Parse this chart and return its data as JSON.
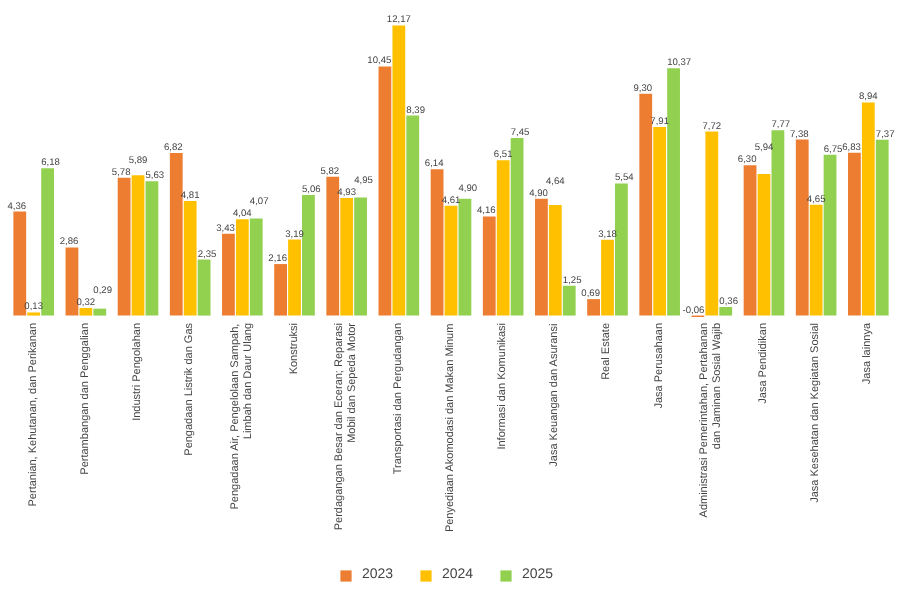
{
  "chart_data": {
    "type": "bar",
    "categories": [
      "Pertanian, Kehutanan, dan Perikanan",
      "Pertambangan dan Penggalian",
      "Industri Pengolahan",
      "Pengadaan Listrik dan Gas",
      "Pengadaan Air, Pengelolaan Sampah, Limbah dan Daur Ulang",
      "Konstruksi",
      "Perdagangan Besar dan Eceran; Reparasi Mobil dan Sepeda Motor",
      "Transportasi dan Pergudangan",
      "Penyediaan Akomodasi dan Makan Minum",
      "Informasi dan Komunikasi",
      "Jasa Keuangan dan Asuransi",
      "Real Estate",
      "Jasa Perusahaan",
      "Administrasi Pemerintahan, Pertahanan dan Jaminan Sosial Wajib",
      "Jasa Pendidikan",
      "Jasa Kesehatan dan Kegiatan Sosial",
      "Jasa lainnya"
    ],
    "series": [
      {
        "name": "2023",
        "color": "#ed7d31",
        "values": [
          4.36,
          2.86,
          5.78,
          6.82,
          3.43,
          2.16,
          5.82,
          10.45,
          6.14,
          4.16,
          4.9,
          0.69,
          9.3,
          -0.06,
          6.3,
          7.38,
          6.83
        ],
        "value_labels": [
          "4,36",
          "2,86",
          "5,78",
          "6,82",
          "3,43",
          "2,16",
          "5,82",
          "10,45",
          "6,14",
          "4,16",
          "4,90",
          "0,69",
          "9,30",
          "-0,06",
          "6,30",
          "7,38",
          "6,83"
        ]
      },
      {
        "name": "2024",
        "color": "#ffc000",
        "values": [
          0.13,
          0.32,
          5.89,
          4.81,
          4.04,
          3.19,
          4.93,
          12.17,
          4.61,
          6.51,
          4.64,
          3.18,
          7.91,
          7.72,
          5.94,
          4.65,
          8.94
        ],
        "value_labels": [
          "0,13",
          "0,32",
          "5,89",
          "4,81",
          "4,04",
          "3,19",
          "4,93",
          "12,17",
          "4,61",
          "6,51",
          "4,64",
          "3,18",
          "7,91",
          "7,72",
          "5,94",
          "4,65",
          "8,94"
        ]
      },
      {
        "name": "2025",
        "color": "#92d050",
        "values": [
          6.18,
          0.29,
          5.63,
          2.35,
          4.07,
          5.06,
          4.95,
          8.39,
          4.9,
          7.45,
          1.25,
          5.54,
          10.37,
          0.36,
          7.77,
          6.75,
          7.37
        ],
        "value_labels": [
          "6,18",
          "0,29",
          "5,63",
          "2,35",
          "4,07",
          "5,06",
          "4,95",
          "8,39",
          "4,90",
          "7,45",
          "1,25",
          "5,54",
          "10,37",
          "0,36",
          "7,77",
          "6,75",
          "7,37"
        ]
      }
    ],
    "legend": "bottom"
  }
}
